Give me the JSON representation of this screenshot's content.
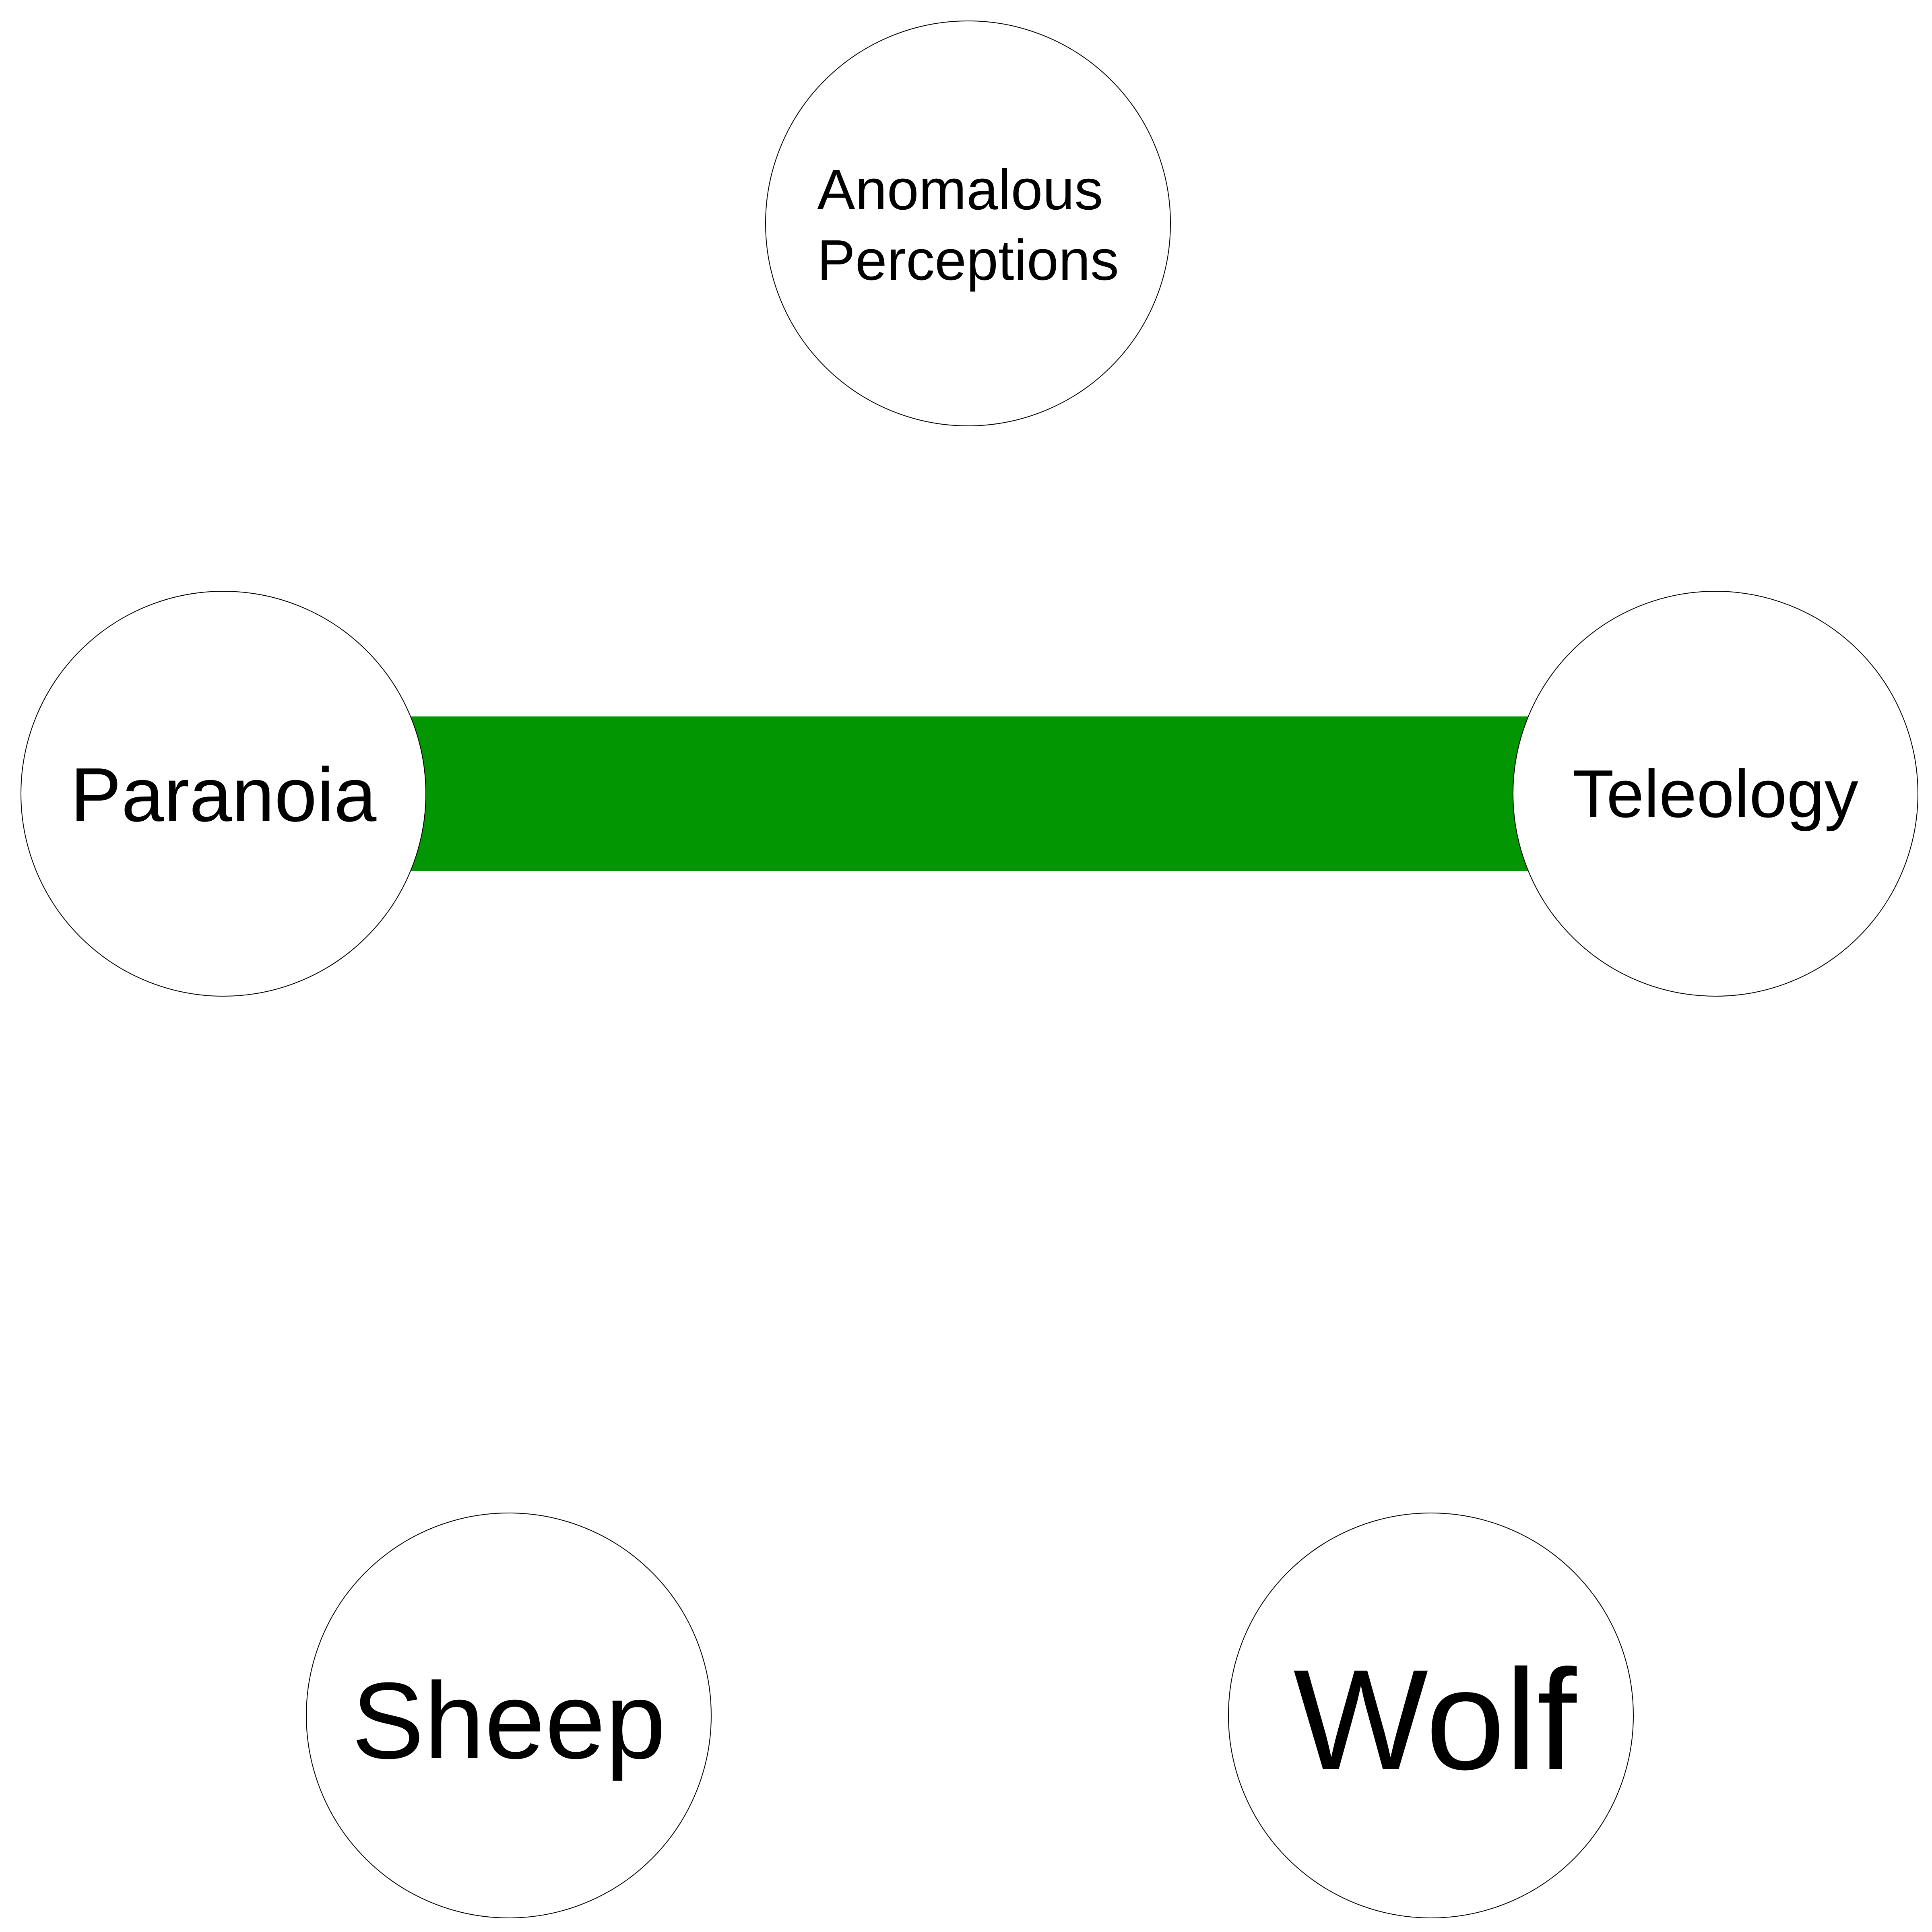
{
  "colors": {
    "background": "#ffffff",
    "edge": "#039603",
    "node_fill": "#ffffff",
    "node_stroke": "#000000",
    "text": "#000000"
  },
  "nodes": [
    {
      "id": "anomalous-perceptions",
      "lines": [
        "Anomalous",
        "Perceptions"
      ]
    },
    {
      "id": "paranoia",
      "lines": [
        "Paranoia"
      ]
    },
    {
      "id": "teleology",
      "lines": [
        "Teleology"
      ]
    },
    {
      "id": "sheep",
      "lines": [
        "Sheep"
      ]
    },
    {
      "id": "wolf",
      "lines": [
        "Wolf"
      ]
    }
  ],
  "edges": [
    {
      "from": "paranoia",
      "to": "teleology",
      "weight": 1
    }
  ]
}
